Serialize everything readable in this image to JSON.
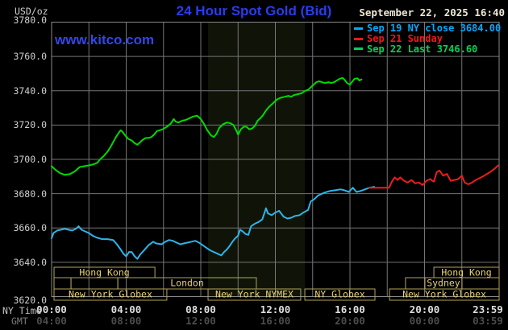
{
  "header": {
    "units_label": "USD/oz",
    "title": "24 Hour Spot Gold (Bid)",
    "datetime": "September 22, 2025 16:40",
    "watermark": "www.kitco.com"
  },
  "legend": {
    "items": [
      {
        "label": "Sep 19 NY close 3684.00",
        "color": "#00aaff"
      },
      {
        "label": "Sep 21 Sunday",
        "color": "#f01818"
      },
      {
        "label": "Sep 22 Last 3746.60",
        "color": "#00d455"
      }
    ]
  },
  "axes": {
    "ny_time_label": "NY Time",
    "gmt_label": "GMT",
    "ny_ticks": [
      "00:00",
      "04:00",
      "08:00",
      "12:00",
      "16:00",
      "20:00",
      "23:59"
    ],
    "gmt_ticks": [
      "04:00",
      "08:00",
      "12:00",
      "16:00",
      "20:00",
      "00:00",
      "03:59"
    ],
    "y_ticks": [
      "3780.0",
      "3760.0",
      "3740.0",
      "3720.0",
      "3700.0",
      "3680.0",
      "3660.0",
      "3640.0",
      "3620.0"
    ]
  },
  "sessions": [
    {
      "row": 0,
      "t0": 0.13,
      "t1": 5.54,
      "label": "Hong Kong"
    },
    {
      "row": 0,
      "t0": 20.5,
      "t1": 24.0,
      "label": "Hong Kong"
    },
    {
      "row": 1,
      "t0": 0.13,
      "t1": 1.04,
      "label": ""
    },
    {
      "row": 1,
      "t0": 1.04,
      "t1": 3.55,
      "label": ""
    },
    {
      "row": 1,
      "t0": 3.55,
      "t1": 10.98,
      "label": "London"
    },
    {
      "row": 1,
      "t0": 18.98,
      "t1": 20.02,
      "label": ""
    },
    {
      "row": 1,
      "t0": 20.02,
      "t1": 22.01,
      "label": "Sydney"
    },
    {
      "row": 1,
      "t0": 22.01,
      "t1": 24.0,
      "label": ""
    },
    {
      "row": 2,
      "t0": 0.13,
      "t1": 6.18,
      "label": "New York Globex"
    },
    {
      "row": 2,
      "t0": 8.39,
      "t1": 13.36,
      "label": "New York NYMEX"
    },
    {
      "row": 2,
      "t0": 13.58,
      "t1": 17.34,
      "label": "NY Globex"
    },
    {
      "row": 2,
      "t0": 18.12,
      "t1": 24.0,
      "label": "New York Globex"
    }
  ],
  "chart_data": {
    "type": "line",
    "title": "24 Hour Spot Gold (Bid)",
    "x_axis": "NY Time (hours, 00:00 - 23:59)",
    "y_axis": "USD/oz",
    "xlim": [
      0,
      24
    ],
    "ylim": [
      3620,
      3780
    ],
    "y_tick_step": 20,
    "x_gridline_step_hours": 2,
    "grid": true,
    "legend_position": "top-right",
    "highlight_band_hours": [
      8.39,
      13.58
    ],
    "series": [
      {
        "name": "Sep 22 Last 3746.60",
        "color": "#00db00",
        "points": [
          [
            0,
            3696
          ],
          [
            0.2,
            3694
          ],
          [
            0.45,
            3692
          ],
          [
            0.7,
            3691
          ],
          [
            1.0,
            3691.5
          ],
          [
            1.25,
            3693
          ],
          [
            1.5,
            3695.5
          ],
          [
            1.75,
            3696
          ],
          [
            2.0,
            3696.5
          ],
          [
            2.2,
            3697
          ],
          [
            2.45,
            3698
          ],
          [
            2.6,
            3700
          ],
          [
            2.8,
            3702
          ],
          [
            3.0,
            3704.5
          ],
          [
            3.15,
            3707
          ],
          [
            3.3,
            3710
          ],
          [
            3.45,
            3713
          ],
          [
            3.6,
            3715.5
          ],
          [
            3.7,
            3717
          ],
          [
            3.8,
            3716
          ],
          [
            3.95,
            3714
          ],
          [
            4.1,
            3712
          ],
          [
            4.3,
            3711
          ],
          [
            4.45,
            3709.5
          ],
          [
            4.6,
            3708.5
          ],
          [
            4.75,
            3710
          ],
          [
            4.9,
            3711.5
          ],
          [
            5.05,
            3712.5
          ],
          [
            5.2,
            3712.5
          ],
          [
            5.35,
            3713
          ],
          [
            5.5,
            3714.5
          ],
          [
            5.65,
            3716.5
          ],
          [
            5.8,
            3717
          ],
          [
            5.95,
            3717.5
          ],
          [
            6.1,
            3718.5
          ],
          [
            6.25,
            3719.5
          ],
          [
            6.4,
            3721
          ],
          [
            6.55,
            3723.5
          ],
          [
            6.65,
            3722
          ],
          [
            6.8,
            3721.5
          ],
          [
            7.0,
            3722.5
          ],
          [
            7.2,
            3723
          ],
          [
            7.4,
            3724
          ],
          [
            7.6,
            3725
          ],
          [
            7.8,
            3725.5
          ],
          [
            8.0,
            3723.5
          ],
          [
            8.15,
            3721
          ],
          [
            8.35,
            3717
          ],
          [
            8.55,
            3714
          ],
          [
            8.7,
            3713
          ],
          [
            8.85,
            3715
          ],
          [
            9.0,
            3718.5
          ],
          [
            9.2,
            3720.5
          ],
          [
            9.4,
            3721.5
          ],
          [
            9.6,
            3721
          ],
          [
            9.75,
            3720
          ],
          [
            9.9,
            3717
          ],
          [
            10.0,
            3714.5
          ],
          [
            10.15,
            3717.5
          ],
          [
            10.3,
            3719
          ],
          [
            10.45,
            3719
          ],
          [
            10.6,
            3717.5
          ],
          [
            10.75,
            3718
          ],
          [
            10.9,
            3719.5
          ],
          [
            11.05,
            3722.5
          ],
          [
            11.2,
            3724
          ],
          [
            11.35,
            3726
          ],
          [
            11.5,
            3728.5
          ],
          [
            11.65,
            3730.5
          ],
          [
            11.8,
            3732
          ],
          [
            11.95,
            3733.5
          ],
          [
            12.1,
            3735
          ],
          [
            12.3,
            3736
          ],
          [
            12.5,
            3736.5
          ],
          [
            12.7,
            3737
          ],
          [
            12.85,
            3736.5
          ],
          [
            13.0,
            3737.5
          ],
          [
            13.2,
            3738
          ],
          [
            13.4,
            3738.5
          ],
          [
            13.6,
            3740
          ],
          [
            13.75,
            3740.5
          ],
          [
            13.9,
            3742
          ],
          [
            14.05,
            3743.5
          ],
          [
            14.2,
            3745
          ],
          [
            14.35,
            3745.5
          ],
          [
            14.5,
            3745
          ],
          [
            14.65,
            3744.5
          ],
          [
            14.85,
            3745
          ],
          [
            15.0,
            3744.5
          ],
          [
            15.15,
            3745
          ],
          [
            15.3,
            3746
          ],
          [
            15.45,
            3747
          ],
          [
            15.6,
            3747.5
          ],
          [
            15.7,
            3746.5
          ],
          [
            15.85,
            3744.5
          ],
          [
            16.0,
            3743.5
          ],
          [
            16.1,
            3745
          ],
          [
            16.25,
            3747
          ],
          [
            16.4,
            3747.3
          ],
          [
            16.5,
            3746
          ],
          [
            16.62,
            3746.6
          ]
        ]
      },
      {
        "name": "Sep 19 NY close 3684.00",
        "color": "#2eb4e8",
        "points": [
          [
            0,
            3654
          ],
          [
            0.1,
            3657
          ],
          [
            0.3,
            3658.5
          ],
          [
            0.5,
            3659
          ],
          [
            0.7,
            3659.5
          ],
          [
            0.9,
            3659
          ],
          [
            1.1,
            3658.5
          ],
          [
            1.3,
            3659.5
          ],
          [
            1.45,
            3661
          ],
          [
            1.6,
            3659
          ],
          [
            1.8,
            3658
          ],
          [
            2.0,
            3657
          ],
          [
            2.2,
            3655.5
          ],
          [
            2.4,
            3654.5
          ],
          [
            2.7,
            3653.5
          ],
          [
            3.0,
            3653.5
          ],
          [
            3.3,
            3653
          ],
          [
            3.5,
            3650.5
          ],
          [
            3.7,
            3647.5
          ],
          [
            3.85,
            3645
          ],
          [
            4.0,
            3643.5
          ],
          [
            4.15,
            3646
          ],
          [
            4.3,
            3646
          ],
          [
            4.45,
            3643.5
          ],
          [
            4.6,
            3642
          ],
          [
            4.75,
            3644.5
          ],
          [
            5.0,
            3647.5
          ],
          [
            5.2,
            3650
          ],
          [
            5.45,
            3652
          ],
          [
            5.6,
            3651
          ],
          [
            5.9,
            3650.5
          ],
          [
            6.1,
            3652
          ],
          [
            6.3,
            3653
          ],
          [
            6.5,
            3652.5
          ],
          [
            6.7,
            3651.5
          ],
          [
            6.9,
            3650.5
          ],
          [
            7.1,
            3651
          ],
          [
            7.3,
            3651.5
          ],
          [
            7.5,
            3652
          ],
          [
            7.7,
            3652.5
          ],
          [
            7.9,
            3651.5
          ],
          [
            8.1,
            3650
          ],
          [
            8.3,
            3648.5
          ],
          [
            8.5,
            3647
          ],
          [
            8.7,
            3646
          ],
          [
            8.9,
            3645
          ],
          [
            9.1,
            3644
          ],
          [
            9.25,
            3646
          ],
          [
            9.4,
            3647.5
          ],
          [
            9.55,
            3649.5
          ],
          [
            9.7,
            3652
          ],
          [
            9.85,
            3654
          ],
          [
            10.0,
            3655.5
          ],
          [
            10.1,
            3659
          ],
          [
            10.25,
            3658
          ],
          [
            10.4,
            3656.5
          ],
          [
            10.55,
            3656
          ],
          [
            10.7,
            3661
          ],
          [
            10.9,
            3662.5
          ],
          [
            11.1,
            3663.5
          ],
          [
            11.3,
            3665
          ],
          [
            11.5,
            3671.5
          ],
          [
            11.6,
            3668.5
          ],
          [
            11.8,
            3667.5
          ],
          [
            12.0,
            3669
          ],
          [
            12.2,
            3670
          ],
          [
            12.45,
            3666.5
          ],
          [
            12.65,
            3665.5
          ],
          [
            12.85,
            3666
          ],
          [
            13.05,
            3667
          ],
          [
            13.3,
            3667.5
          ],
          [
            13.5,
            3669
          ],
          [
            13.75,
            3670.5
          ],
          [
            13.9,
            3675.5
          ],
          [
            14.05,
            3676.5
          ],
          [
            14.3,
            3679
          ],
          [
            14.6,
            3680.5
          ],
          [
            14.9,
            3681.5
          ],
          [
            15.2,
            3682
          ],
          [
            15.5,
            3682.5
          ],
          [
            15.7,
            3682
          ],
          [
            15.95,
            3681
          ],
          [
            16.15,
            3683.5
          ],
          [
            16.35,
            3681
          ],
          [
            16.55,
            3681.5
          ],
          [
            16.8,
            3682.5
          ],
          [
            17.05,
            3683.5
          ],
          [
            17.3,
            3684.0
          ]
        ]
      },
      {
        "name": "Sep 21 Sunday",
        "color": "#ee1c1c",
        "points": [
          [
            17.0,
            3683.5
          ],
          [
            17.5,
            3683.5
          ],
          [
            17.9,
            3683.5
          ],
          [
            18.1,
            3683.5
          ],
          [
            18.25,
            3687
          ],
          [
            18.4,
            3689.5
          ],
          [
            18.55,
            3688
          ],
          [
            18.7,
            3689.5
          ],
          [
            18.9,
            3687.5
          ],
          [
            19.1,
            3686.5
          ],
          [
            19.3,
            3688
          ],
          [
            19.5,
            3686
          ],
          [
            19.7,
            3686.5
          ],
          [
            19.9,
            3685
          ],
          [
            20.1,
            3687.5
          ],
          [
            20.3,
            3688.5
          ],
          [
            20.5,
            3687
          ],
          [
            20.65,
            3692.5
          ],
          [
            20.8,
            3693.5
          ],
          [
            21.0,
            3690.5
          ],
          [
            21.2,
            3691.5
          ],
          [
            21.4,
            3687.5
          ],
          [
            21.6,
            3688
          ],
          [
            21.8,
            3688.5
          ],
          [
            22.0,
            3690.5
          ],
          [
            22.15,
            3686.5
          ],
          [
            22.35,
            3685.5
          ],
          [
            22.55,
            3686.5
          ],
          [
            22.75,
            3688
          ],
          [
            22.95,
            3689
          ],
          [
            23.2,
            3690.5
          ],
          [
            23.5,
            3692.5
          ],
          [
            23.75,
            3694.5
          ],
          [
            23.95,
            3696.5
          ]
        ]
      }
    ],
    "style": {
      "background": "#000000",
      "band_color": "#101408",
      "grid_color": "#757575",
      "frame_color": "#8a8a8a",
      "session_border": "#b3a455",
      "session_text": "#e9d26e"
    }
  }
}
